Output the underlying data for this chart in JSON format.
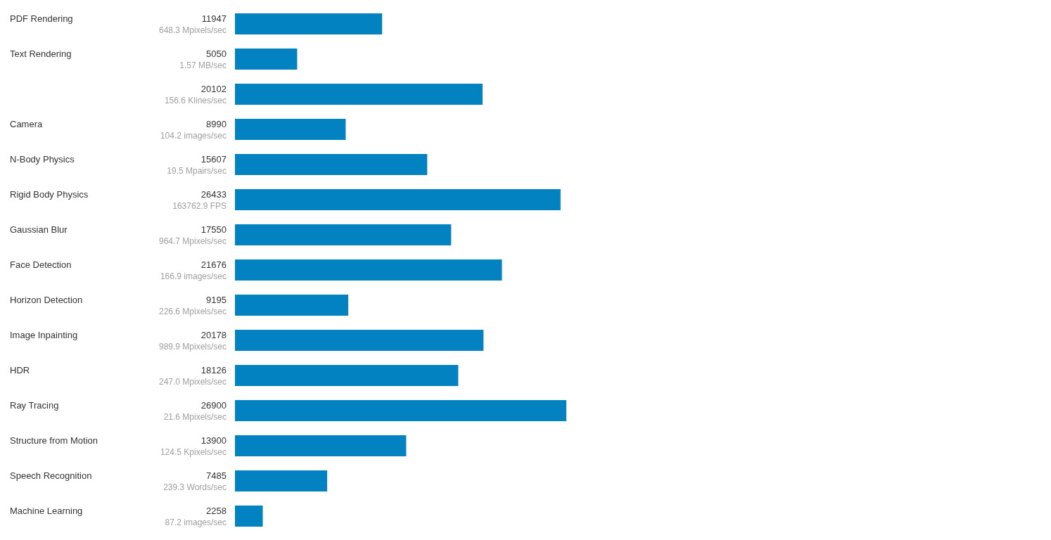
{
  "chart_data": {
    "type": "bar",
    "orientation": "horizontal",
    "data_labels": true,
    "color": "#0382c2",
    "categories": [
      "PDF Rendering",
      "Text Rendering",
      null,
      "Camera",
      "N-Body Physics",
      "Rigid Body Physics",
      "Gaussian Blur",
      "Face Detection",
      "Horizon Detection",
      "Image Inpainting",
      "HDR",
      "Ray Tracing",
      "Structure from Motion",
      "Speech Recognition",
      "Machine Learning"
    ],
    "values": [
      11947,
      5050,
      20102,
      8990,
      15607,
      26433,
      17550,
      21676,
      9195,
      20178,
      18126,
      26900,
      13900,
      7485,
      2258
    ],
    "annotations": [
      "648.3 Mpixels/sec",
      "1.57 MB/sec",
      "156.6 Klines/sec",
      "104.2 images/sec",
      "19.5 Mpairs/sec",
      "163762.9 FPS",
      "964.7 Mpixels/sec",
      "166.9 images/sec",
      "226.6 Mpixels/sec",
      "989.9 Mpixels/sec",
      "247.0 Mpixels/sec",
      "21.6 Mpixels/sec",
      "124.5 Kpixels/sec",
      "239.3 Words/sec",
      "87.2 images/sec"
    ]
  }
}
